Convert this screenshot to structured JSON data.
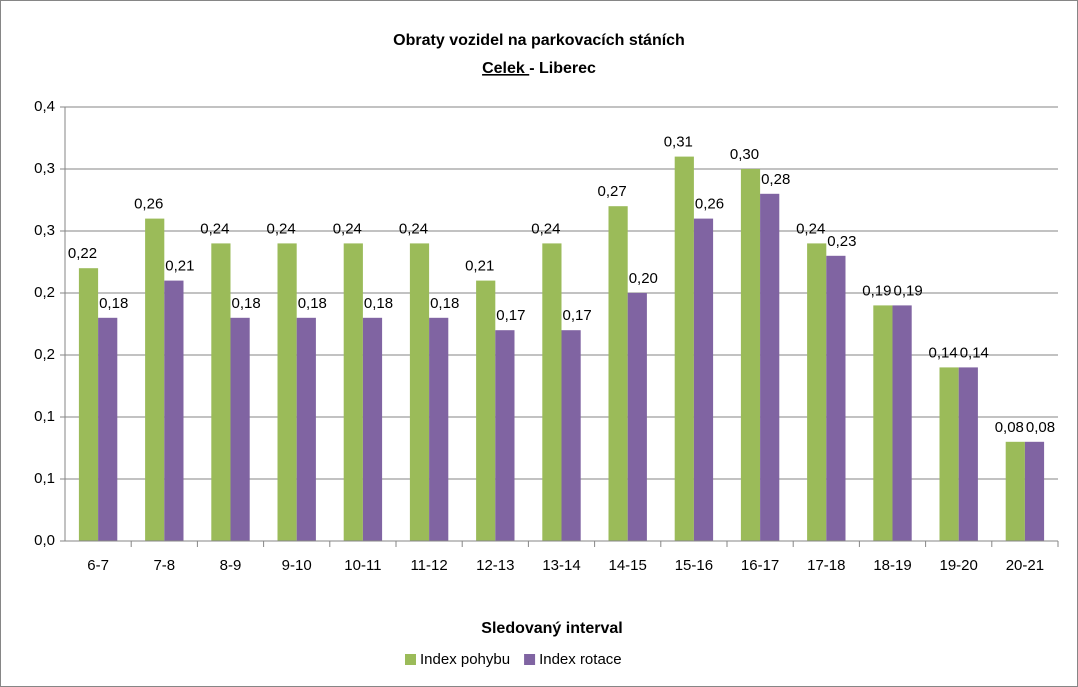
{
  "chart_data": {
    "type": "bar",
    "title": "Obraty vozidel na parkovacích stáních",
    "subtitle_underlined": "Celek ",
    "subtitle_rest": "- Liberec",
    "x_label": "Sledovaný interval",
    "categories": [
      "6-7",
      "7-8",
      "8-9",
      "9-10",
      "10-11",
      "11-12",
      "12-13",
      "13-14",
      "14-15",
      "15-16",
      "16-17",
      "17-18",
      "18-19",
      "19-20",
      "20-21"
    ],
    "series": [
      {
        "name": "Index pohybu",
        "color": "#9bbb59",
        "values": [
          0.22,
          0.26,
          0.24,
          0.24,
          0.24,
          0.24,
          0.21,
          0.24,
          0.27,
          0.31,
          0.3,
          0.24,
          0.19,
          0.14,
          0.08
        ],
        "value_labels": [
          "0,22",
          "0,26",
          "0,24",
          "0,24",
          "0,24",
          "0,24",
          "0,21",
          "0,24",
          "0,27",
          "0,31",
          "0,30",
          "0,24",
          "0,19",
          "0,14",
          "0,08"
        ]
      },
      {
        "name": "Index rotace",
        "color": "#8064a2",
        "values": [
          0.18,
          0.21,
          0.18,
          0.18,
          0.18,
          0.18,
          0.17,
          0.17,
          0.2,
          0.26,
          0.28,
          0.23,
          0.19,
          0.14,
          0.08
        ],
        "value_labels": [
          "0,18",
          "0,21",
          "0,18",
          "0,18",
          "0,18",
          "0,18",
          "0,17",
          "0,17",
          "0,20",
          "0,26",
          "0,28",
          "0,23",
          "0,19",
          "0,14",
          "0,08"
        ]
      }
    ],
    "ylim": [
      0,
      0.35
    ],
    "yticks": [
      {
        "value": 0,
        "label": "0,0"
      },
      {
        "value": 0.05,
        "label": "0,1"
      },
      {
        "value": 0.1,
        "label": "0,1"
      },
      {
        "value": 0.15,
        "label": "0,2"
      },
      {
        "value": 0.2,
        "label": "0,2"
      },
      {
        "value": 0.25,
        "label": "0,3"
      },
      {
        "value": 0.3,
        "label": "0,3"
      },
      {
        "value": 0.35,
        "label": "0,4"
      }
    ],
    "grid": true,
    "legend": "bottom"
  }
}
